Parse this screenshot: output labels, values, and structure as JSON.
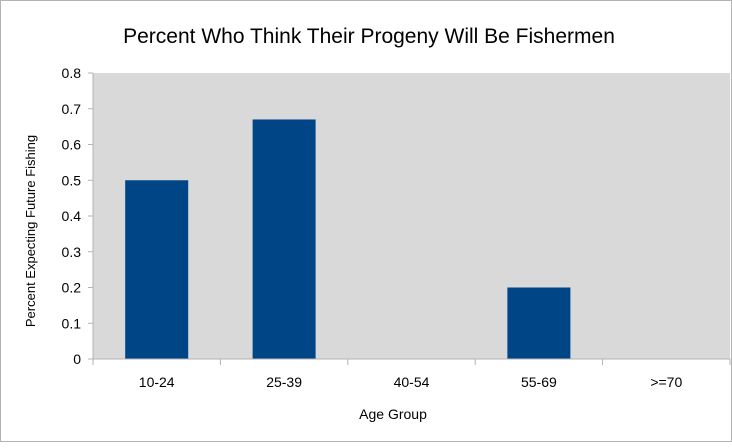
{
  "chart_data": {
    "type": "bar",
    "title": "Percent Who Think Their Progeny Will Be Fishermen",
    "xlabel": "Age Group",
    "ylabel": "Percent Expecting Future Fishing",
    "categories": [
      "10-24",
      "25-39",
      "40-54",
      "55-69",
      ">=70"
    ],
    "values": [
      0.5,
      0.67,
      0,
      0.2,
      0
    ],
    "ylim": [
      0,
      0.8
    ],
    "yticks": [
      "0",
      "0.1",
      "0.2",
      "0.3",
      "0.4",
      "0.5",
      "0.6",
      "0.7",
      "0.8"
    ],
    "bar_color": "#004586",
    "plot_background": "#d9d9d9",
    "grid": false,
    "legend": false
  }
}
